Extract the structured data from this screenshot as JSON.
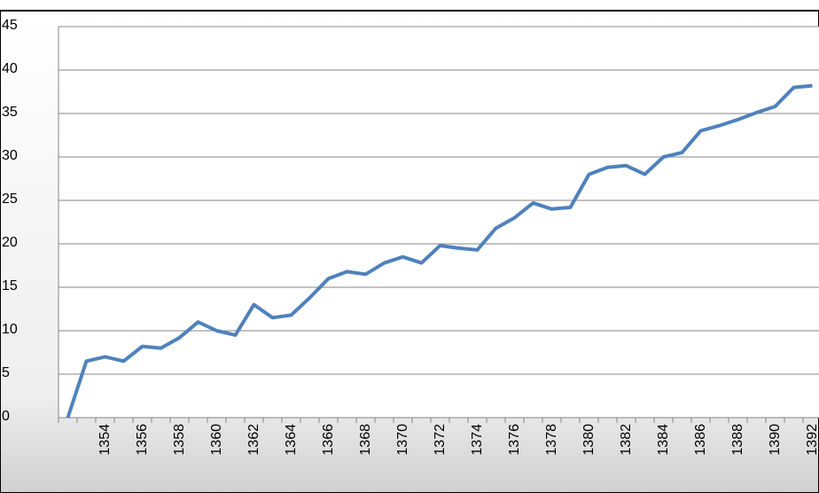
{
  "chart_data": {
    "type": "line",
    "categories": [
      null,
      null,
      "1354",
      null,
      "1356",
      null,
      "1358",
      null,
      "1360",
      null,
      "1362",
      null,
      "1364",
      null,
      "1366",
      null,
      "1368",
      null,
      "1370",
      null,
      "1372",
      null,
      "1374",
      null,
      "1376",
      null,
      "1378",
      null,
      "1380",
      null,
      "1382",
      null,
      "1384",
      null,
      "1386",
      null,
      "1388",
      null,
      "1390",
      null,
      "1392"
    ],
    "series": [
      {
        "color": "#4f81bd",
        "values": [
          0,
          6.5,
          7.0,
          6.5,
          8.2,
          8.0,
          9.2,
          11.0,
          10.0,
          9.5,
          13.0,
          11.5,
          11.8,
          13.8,
          16.0,
          16.8,
          16.5,
          17.8,
          18.5,
          17.8,
          19.8,
          19.5,
          19.3,
          21.8,
          23.0,
          24.7,
          24.0,
          24.2,
          28.0,
          28.8,
          29.0,
          28.0,
          30.0,
          30.5,
          33.0,
          33.6,
          34.3,
          35.1,
          35.8,
          38.0,
          38.2
        ]
      }
    ],
    "ylim": [
      0,
      45
    ],
    "yticks": [
      0,
      5,
      10,
      15,
      20,
      25,
      30,
      35,
      40,
      45
    ],
    "grid": true
  }
}
